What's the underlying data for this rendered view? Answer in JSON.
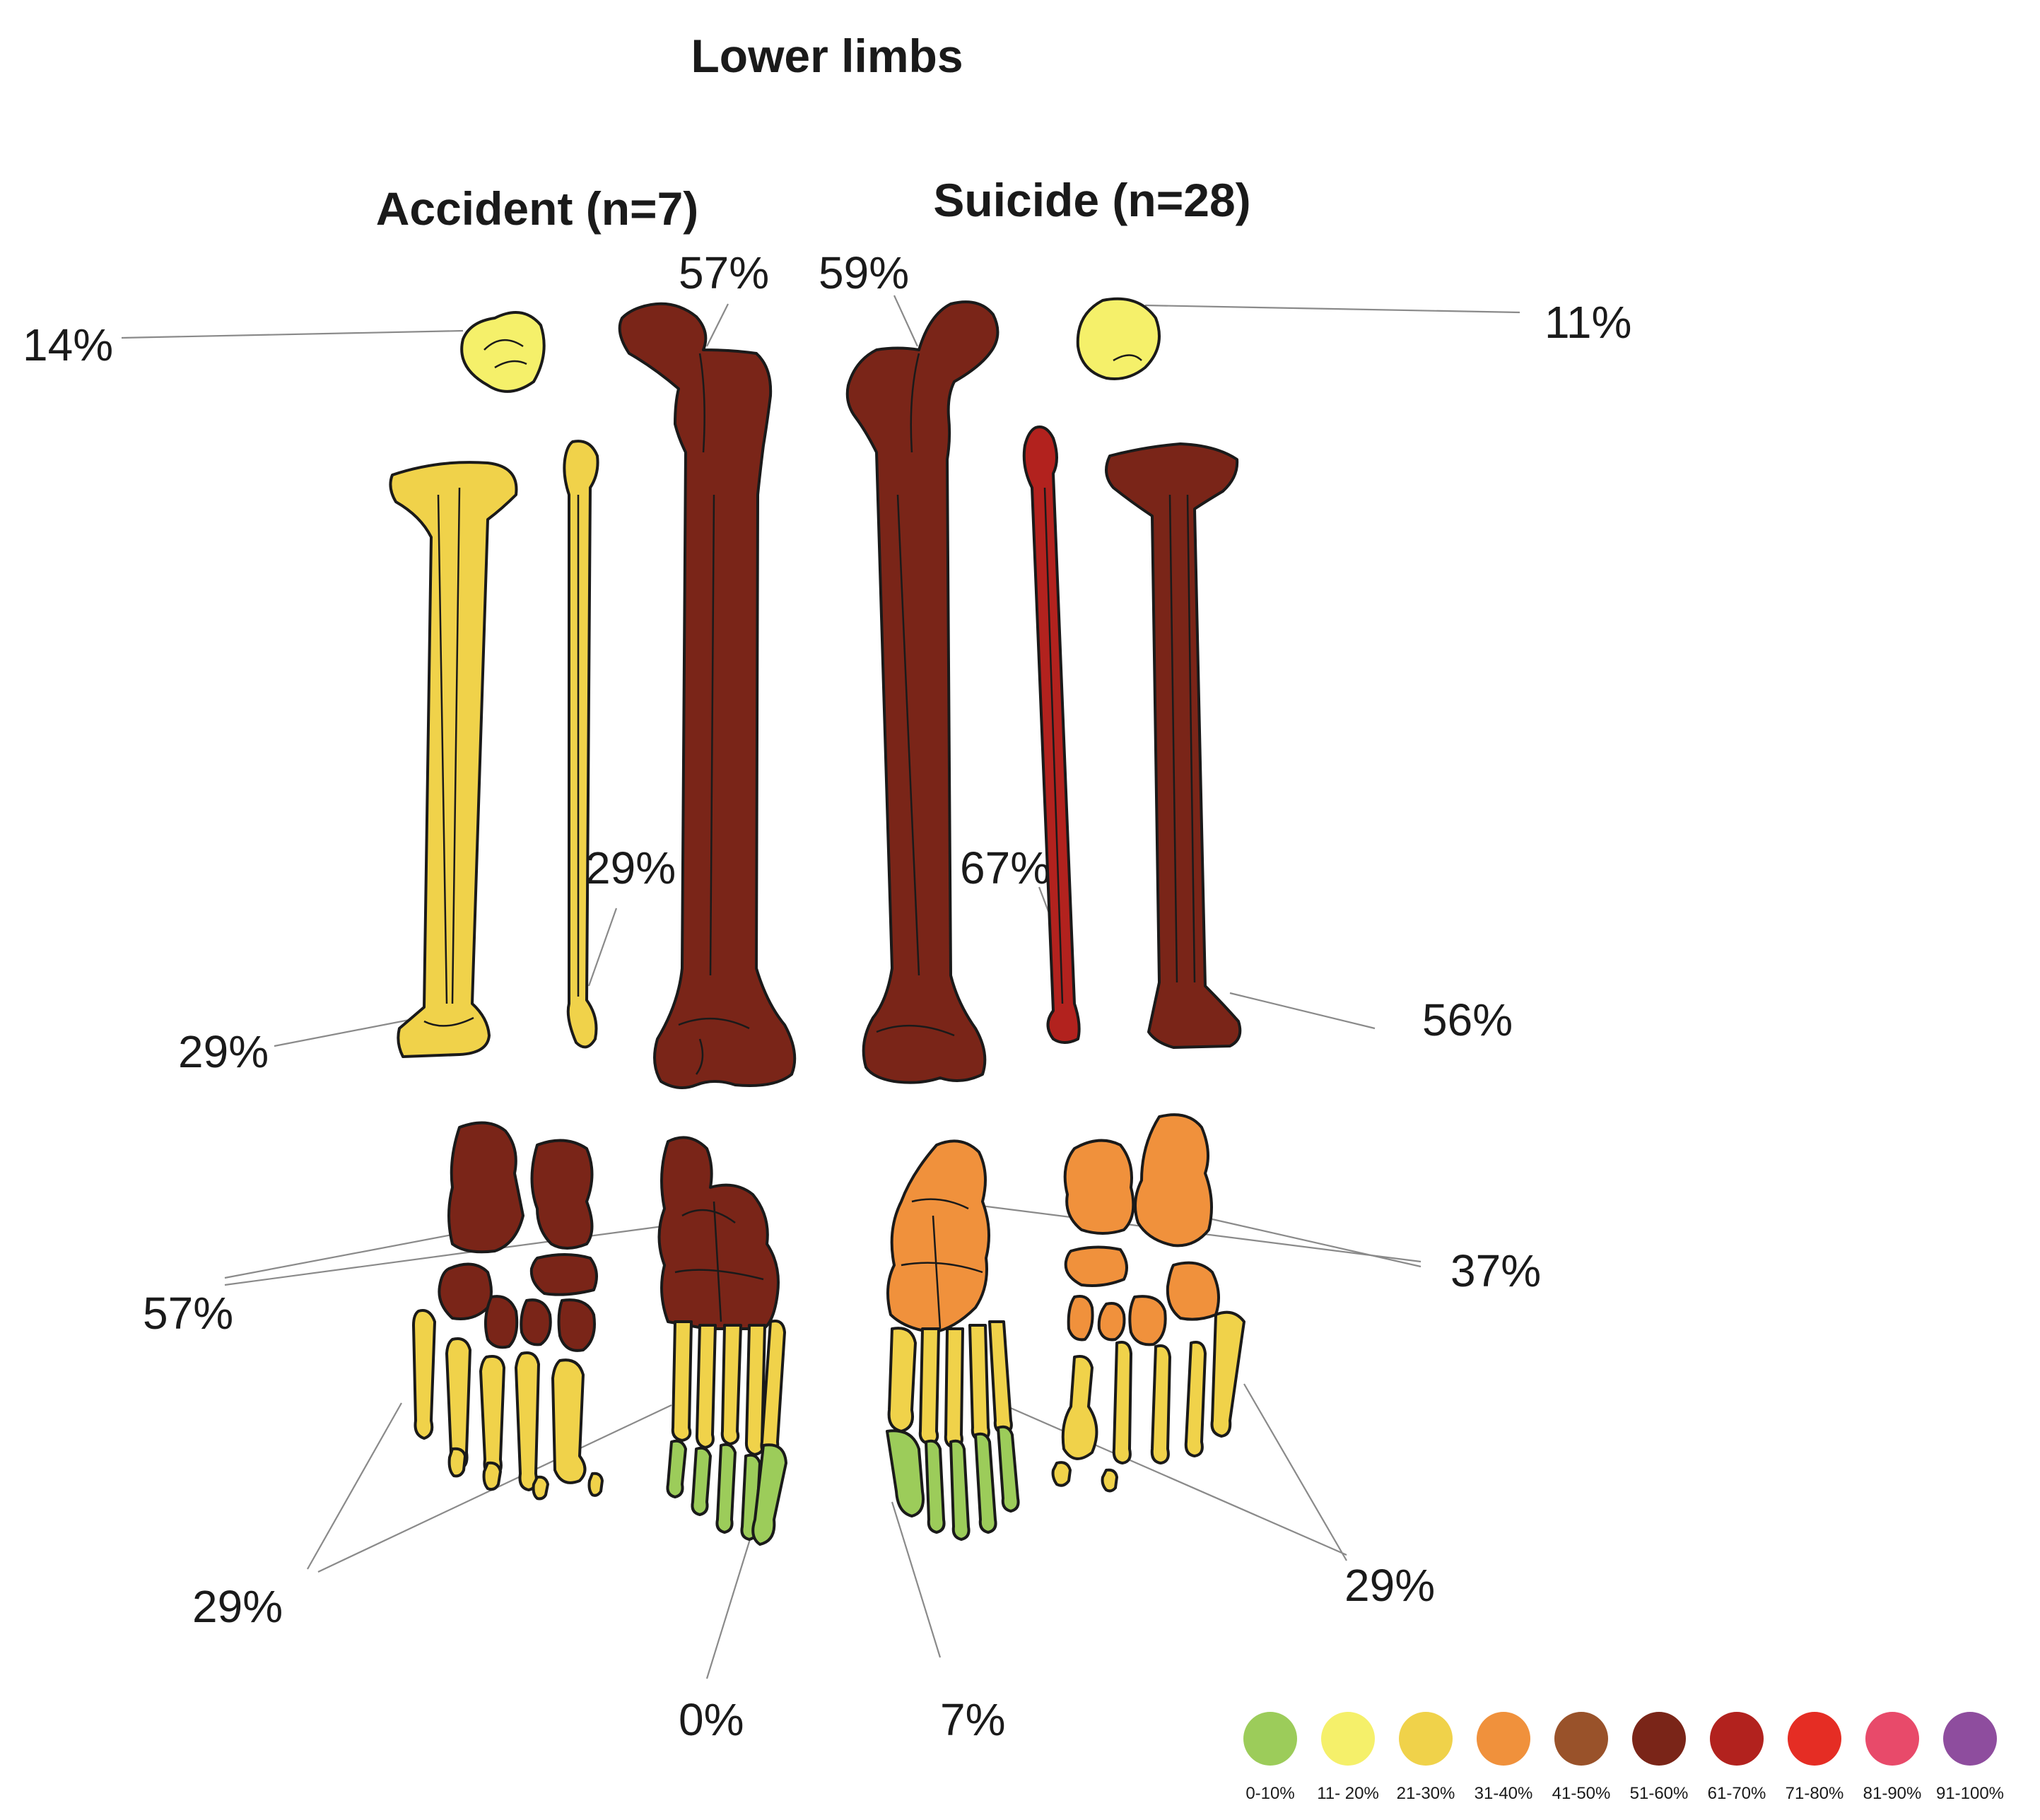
{
  "title": "Lower limbs",
  "groups": [
    {
      "label": "Accident (n=7)"
    },
    {
      "label": "Suicide (n=28)"
    }
  ],
  "colors": {
    "green": "#9ccc5a",
    "light_yellow": "#f5f06a",
    "yellow": "#f0d24a",
    "orange": "#f0913c",
    "brown": "#8b3a1e",
    "dark_brown": "#7a2518",
    "red_brown": "#b2221e",
    "red": "#e52d24",
    "pink": "#e84a6a",
    "purple": "#8e4d9e"
  },
  "percentages": {
    "acc_patella": "14%",
    "acc_femur": "57%",
    "acc_fibula": "29%",
    "acc_tibia": "29%",
    "acc_tarsals": "57%",
    "acc_metatarsals": "29%",
    "acc_phalanges": "0%",
    "sui_femur": "59%",
    "sui_patella": "11%",
    "sui_fibula": "67%",
    "sui_tibia": "56%",
    "sui_tarsals": "37%",
    "sui_metatarsals": "29%",
    "sui_phalanges": "7%"
  },
  "legend": {
    "items": [
      {
        "label": "0-10%",
        "color": "#9ccc5a"
      },
      {
        "label": "11- 20%",
        "color": "#f5f06a"
      },
      {
        "label": "21-30%",
        "color": "#f0d24a"
      },
      {
        "label": "31-40%",
        "color": "#f0913c"
      },
      {
        "label": "41-50%",
        "color": "#99522a"
      },
      {
        "label": "51-60%",
        "color": "#7a2518"
      },
      {
        "label": "61-70%",
        "color": "#b2221e"
      },
      {
        "label": "71-80%",
        "color": "#e52d24"
      },
      {
        "label": "81-90%",
        "color": "#e84a6a"
      },
      {
        "label": "91-100%",
        "color": "#8e4d9e"
      }
    ]
  }
}
